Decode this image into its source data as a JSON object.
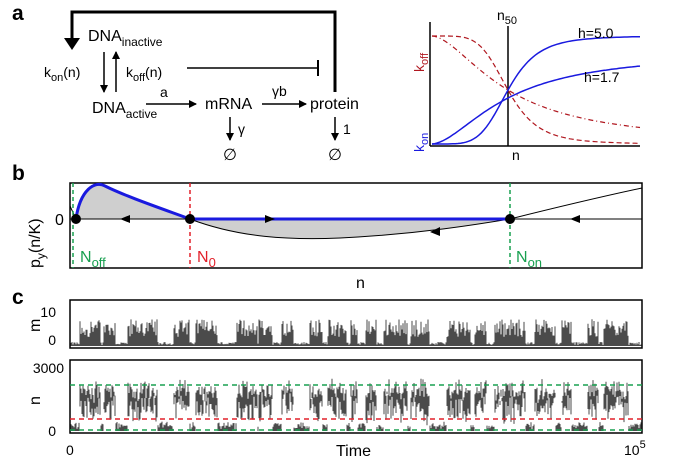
{
  "panels": {
    "a": {
      "letter": "a",
      "scheme": {
        "dna_inactive": {
          "base": "DNA",
          "sub": "inactive"
        },
        "dna_active": {
          "base": "DNA",
          "sub": "active"
        },
        "k_on": {
          "base": "k",
          "sub": "on",
          "arg": "(n)"
        },
        "k_off": {
          "base": "k",
          "sub": "off",
          "arg": "(n)"
        },
        "mrna": "mRNA",
        "protein": "protein",
        "rate_a": "a",
        "rate_gamma_b": "γb",
        "rate_gamma": "γ",
        "rate_one": "1",
        "degradation_symbol": "∅"
      },
      "inset": {
        "n50": {
          "base": "n",
          "sub": "50"
        },
        "h_high": "h=5.0",
        "h_low": "h=1.7",
        "ylabel_top": {
          "base": "k",
          "sub": "off"
        },
        "ylabel_bottom": {
          "base": "k",
          "sub": "on"
        },
        "xlabel": "n",
        "colors": {
          "k_on": "#1a1adf",
          "k_off": "#b0171f"
        }
      }
    },
    "b": {
      "letter": "b",
      "ylabel": {
        "base": "p",
        "sub": "y",
        "arg": "(n/K)"
      },
      "xlabel": "n",
      "zero_label": "0",
      "fixed_points": [
        {
          "base": "N",
          "sub": "off",
          "color": "#18a050"
        },
        {
          "base": "N",
          "sub": "0",
          "color": "#e2202a"
        },
        {
          "base": "N",
          "sub": "on",
          "color": "#18a050"
        }
      ]
    },
    "c": {
      "letter": "c",
      "top": {
        "ylabel": "m",
        "ticks": [
          "10",
          "0"
        ]
      },
      "bottom": {
        "ylabel": "n",
        "ticks": [
          "3000",
          "0"
        ]
      },
      "xlabel": "Time",
      "x_ticks": {
        "start": "0",
        "end_base": "10",
        "end_exp": "5"
      },
      "threshold_colors": {
        "on": "#18a050",
        "mid": "#e2202a",
        "off": "#18a050"
      }
    }
  }
}
